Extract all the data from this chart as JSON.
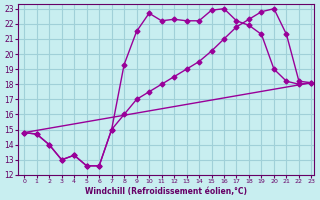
{
  "xlabel": "Windchill (Refroidissement éolien,°C)",
  "bg_color": "#c8eef0",
  "grid_color": "#a0d0d8",
  "line_color": "#990099",
  "xlim": [
    0,
    23
  ],
  "ylim": [
    12,
    23
  ],
  "xticks": [
    0,
    1,
    2,
    3,
    4,
    5,
    6,
    7,
    8,
    9,
    10,
    11,
    12,
    13,
    14,
    15,
    16,
    17,
    18,
    19,
    20,
    21,
    22,
    23
  ],
  "yticks": [
    12,
    13,
    14,
    15,
    16,
    17,
    18,
    19,
    20,
    21,
    22,
    23
  ],
  "series1_x": [
    0,
    1,
    2,
    3,
    4,
    5,
    6,
    7,
    8,
    9,
    10,
    11,
    12,
    13,
    14,
    15,
    16,
    17,
    18,
    19,
    20,
    21,
    22,
    23
  ],
  "series1_y": [
    14.8,
    14.7,
    14.0,
    13.0,
    13.3,
    12.6,
    12.6,
    15.0,
    19.3,
    21.5,
    22.7,
    22.2,
    22.3,
    22.2,
    22.2,
    22.9,
    23.0,
    22.2,
    21.9,
    21.3,
    19.0,
    18.2,
    18.0,
    18.1
  ],
  "series2_x": [
    0,
    1,
    2,
    3,
    4,
    5,
    6,
    7,
    8,
    9,
    10,
    11,
    12,
    13,
    14,
    15,
    16,
    17,
    18,
    19,
    20,
    21,
    22,
    23
  ],
  "series2_y": [
    14.8,
    14.7,
    14.0,
    13.0,
    13.3,
    12.6,
    12.6,
    15.0,
    16.0,
    17.0,
    17.5,
    18.0,
    18.5,
    19.0,
    19.5,
    20.2,
    21.0,
    21.8,
    22.3,
    22.8,
    23.0,
    21.3,
    18.2,
    18.1
  ],
  "series3_x": [
    0,
    23
  ],
  "series3_y": [
    14.8,
    18.1
  ]
}
